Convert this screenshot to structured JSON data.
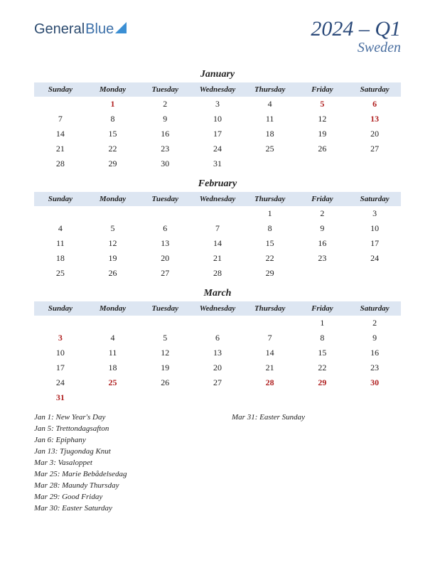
{
  "logo": {
    "part1": "General",
    "part2": "Blue"
  },
  "title": {
    "main": "2024 – Q1",
    "sub": "Sweden"
  },
  "colors": {
    "header_bg": "#dde6f2",
    "title_color": "#2b4a7a",
    "subtitle_color": "#4a6fa0",
    "holiday_color": "#b02020",
    "text_color": "#222222",
    "background": "#ffffff"
  },
  "daynames": [
    "Sunday",
    "Monday",
    "Tuesday",
    "Wednesday",
    "Thursday",
    "Friday",
    "Saturday"
  ],
  "months": [
    {
      "name": "January",
      "weeks": [
        [
          "",
          "1*",
          "2",
          "3",
          "4",
          "5*",
          "6*"
        ],
        [
          "7",
          "8",
          "9",
          "10",
          "11",
          "12",
          "13*"
        ],
        [
          "14",
          "15",
          "16",
          "17",
          "18",
          "19",
          "20"
        ],
        [
          "21",
          "22",
          "23",
          "24",
          "25",
          "26",
          "27"
        ],
        [
          "28",
          "29",
          "30",
          "31",
          "",
          "",
          ""
        ]
      ]
    },
    {
      "name": "February",
      "weeks": [
        [
          "",
          "",
          "",
          "",
          "1",
          "2",
          "3"
        ],
        [
          "4",
          "5",
          "6",
          "7",
          "8",
          "9",
          "10"
        ],
        [
          "11",
          "12",
          "13",
          "14",
          "15",
          "16",
          "17"
        ],
        [
          "18",
          "19",
          "20",
          "21",
          "22",
          "23",
          "24"
        ],
        [
          "25",
          "26",
          "27",
          "28",
          "29",
          "",
          ""
        ]
      ]
    },
    {
      "name": "March",
      "weeks": [
        [
          "",
          "",
          "",
          "",
          "",
          "1",
          "2"
        ],
        [
          "3*",
          "4",
          "5",
          "6",
          "7",
          "8",
          "9"
        ],
        [
          "10",
          "11",
          "12",
          "13",
          "14",
          "15",
          "16"
        ],
        [
          "17",
          "18",
          "19",
          "20",
          "21",
          "22",
          "23"
        ],
        [
          "24",
          "25*",
          "26",
          "27",
          "28*",
          "29*",
          "30*"
        ],
        [
          "31*",
          "",
          "",
          "",
          "",
          "",
          ""
        ]
      ]
    }
  ],
  "holidays": {
    "col1": [
      "Jan 1: New Year's Day",
      "Jan 5: Trettondagsafton",
      "Jan 6: Epiphany",
      "Jan 13: Tjugondag Knut",
      "Mar 3: Vasaloppet",
      "Mar 25: Marie Bebådelsedag",
      "Mar 28: Maundy Thursday",
      "Mar 29: Good Friday",
      "Mar 30: Easter Saturday"
    ],
    "col2": [
      "Mar 31: Easter Sunday"
    ]
  }
}
